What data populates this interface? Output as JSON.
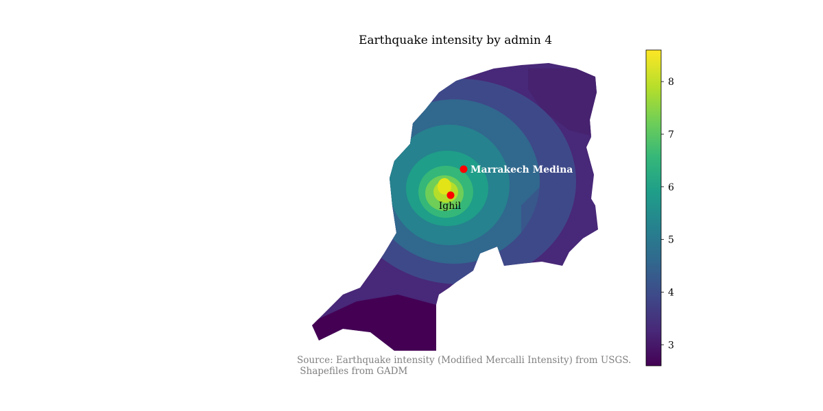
{
  "figure": {
    "title": "Earthquake intensity by admin 4",
    "source_line1": "Source: Earthquake intensity (Modified Mercalli Intensity) from USGS.",
    "source_line2": " Shapefiles from GADM"
  },
  "map": {
    "colormap": [
      "#440154",
      "#482878",
      "#3e4989",
      "#31688e",
      "#26828e",
      "#1f9e89",
      "#35b779",
      "#6ece58",
      "#b5de2b",
      "#fde725"
    ],
    "marker_color": "#ff0000",
    "cities": [
      {
        "name": "Marrakech Medina",
        "label_style": "white-bold"
      },
      {
        "name": "Ighil",
        "label_style": "black"
      }
    ]
  },
  "colorbar": {
    "min": 2.6,
    "max": 8.6,
    "ticks": [
      "3",
      "4",
      "5",
      "6",
      "7",
      "8"
    ]
  }
}
